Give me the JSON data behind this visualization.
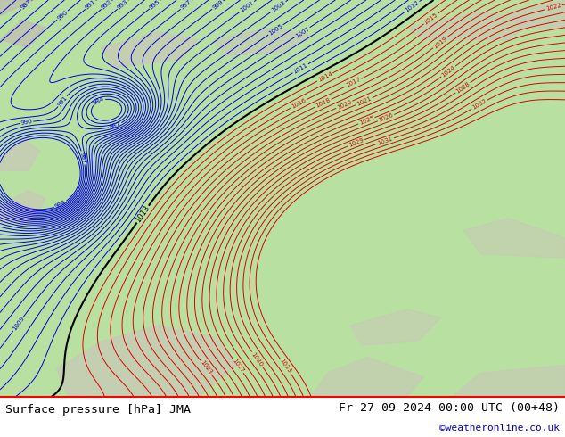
{
  "title_left": "Surface pressure [hPa] JMA",
  "title_right": "Fr 27-09-2024 00:00 UTC (00+48)",
  "credit": "©weatheronline.co.uk",
  "fig_width": 6.34,
  "fig_height": 4.9,
  "dpi": 100,
  "blue_color": "#0000dd",
  "red_color": "#dd0000",
  "black_color": "#000000",
  "bg_green": "#b8e0a0",
  "land_gray": "#c8c8b8",
  "white_text_bg": "#ffffff"
}
